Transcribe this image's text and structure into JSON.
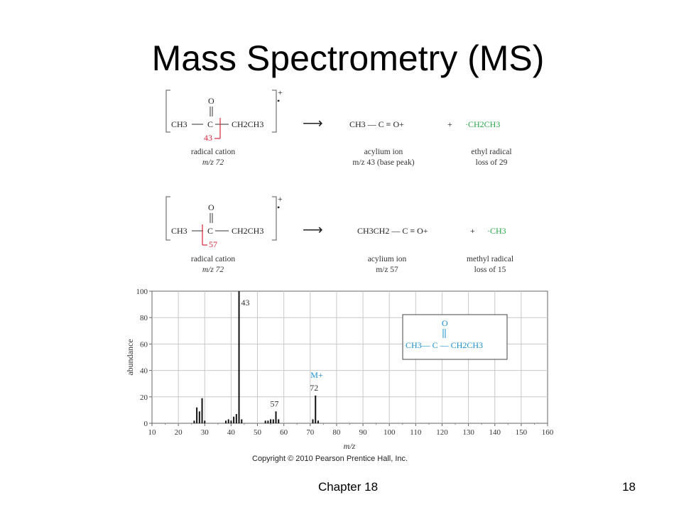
{
  "slide": {
    "title": "Mass Spectrometry (MS)",
    "chapter": "Chapter 18",
    "page_number": "18",
    "copyright": "Copyright © 2010 Pearson Prentice Hall, Inc."
  },
  "scheme": {
    "row1": {
      "oxygen": "O",
      "left_group": "CH3",
      "carbon": "C",
      "right_group": "CH2CH3",
      "cleavage_label": "43",
      "charge": "+",
      "radical_dot": "•",
      "arrow": "⟶",
      "product": "CH3 — C ≡ O+",
      "plus": "+",
      "radical": "·CH2CH3",
      "caption_left_1": "radical cation",
      "caption_left_2": "m/z 72",
      "caption_mid_1": "acylium ion",
      "caption_mid_2": "m/z 43 (base peak)",
      "caption_right_1": "ethyl radical",
      "caption_right_2": "loss of 29"
    },
    "row2": {
      "oxygen": "O",
      "left_group": "CH3",
      "carbon": "C",
      "right_group": "CH2CH3",
      "cleavage_label": "57",
      "charge": "+",
      "radical_dot": "•",
      "arrow": "⟶",
      "product": "CH3CH2 — C ≡ O+",
      "plus": "+",
      "radical": "·CH3",
      "caption_left_1": "radical cation",
      "caption_left_2": "m/z 72",
      "caption_mid_1": "acylium ion",
      "caption_mid_2": "m/z 57",
      "caption_right_1": "methyl radical",
      "caption_right_2": "loss of 15"
    },
    "colors": {
      "cleavage": "#d6283c",
      "radical": "#2aa84a",
      "structure": "#1a8fd0"
    }
  },
  "chart_data": {
    "type": "bar",
    "xlabel": "m/z",
    "ylabel": "abundance",
    "xlim": [
      10,
      160
    ],
    "ylim": [
      0,
      100
    ],
    "xticks": [
      10,
      20,
      30,
      40,
      50,
      60,
      70,
      80,
      90,
      100,
      110,
      120,
      130,
      140,
      150,
      160
    ],
    "yticks": [
      0,
      20,
      40,
      60,
      80,
      100
    ],
    "grid": true,
    "peaks": [
      {
        "mz": 26,
        "abundance": 2
      },
      {
        "mz": 27,
        "abundance": 12
      },
      {
        "mz": 28,
        "abundance": 9
      },
      {
        "mz": 29,
        "abundance": 19
      },
      {
        "mz": 30,
        "abundance": 2
      },
      {
        "mz": 38,
        "abundance": 2
      },
      {
        "mz": 39,
        "abundance": 3
      },
      {
        "mz": 40,
        "abundance": 2
      },
      {
        "mz": 41,
        "abundance": 5
      },
      {
        "mz": 42,
        "abundance": 7
      },
      {
        "mz": 43,
        "abundance": 100
      },
      {
        "mz": 44,
        "abundance": 3
      },
      {
        "mz": 53,
        "abundance": 2
      },
      {
        "mz": 54,
        "abundance": 2
      },
      {
        "mz": 55,
        "abundance": 3
      },
      {
        "mz": 56,
        "abundance": 3
      },
      {
        "mz": 57,
        "abundance": 9
      },
      {
        "mz": 58,
        "abundance": 3
      },
      {
        "mz": 71,
        "abundance": 3
      },
      {
        "mz": 72,
        "abundance": 21
      },
      {
        "mz": 73,
        "abundance": 2
      }
    ],
    "peak_labels": [
      {
        "mz": 43,
        "text": "43"
      },
      {
        "mz": 57,
        "text": "57"
      },
      {
        "mz": 72,
        "text": "72"
      }
    ],
    "molecular_ion_label": "M+",
    "inset": {
      "oxygen": "O",
      "formula": "CH3— C — CH2CH3"
    }
  }
}
